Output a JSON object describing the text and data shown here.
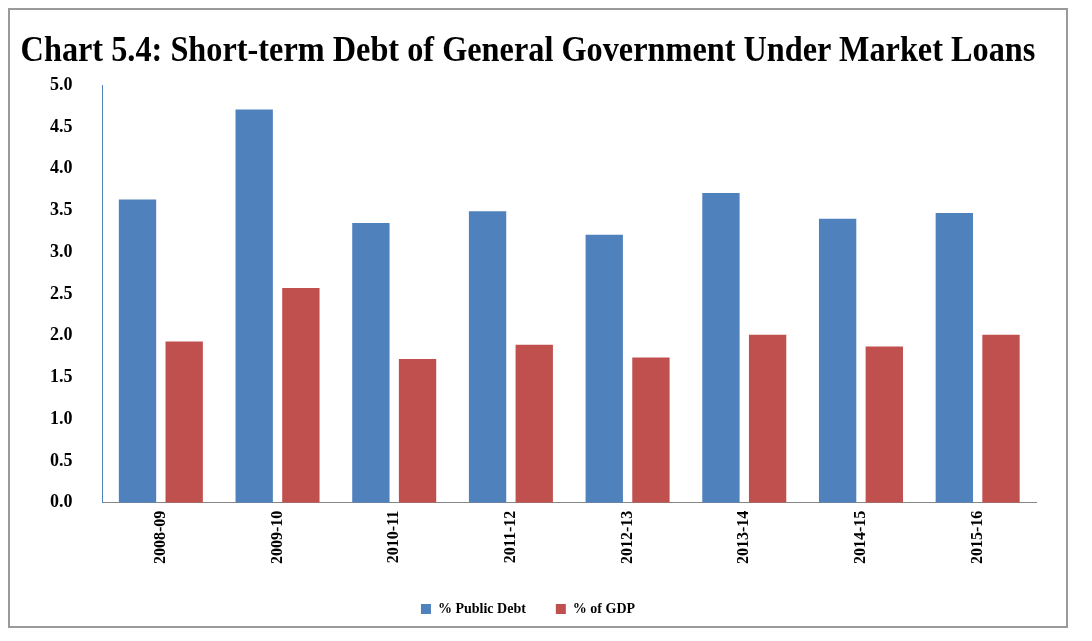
{
  "chart_data": {
    "type": "bar",
    "title": "Chart 5.4: Short-term Debt of General Government Under Market Loans",
    "categories": [
      "2008-09",
      "2009-10",
      "2010-11",
      "2011-12",
      "2012-13",
      "2013-14",
      "2014-15",
      "2015-16"
    ],
    "series": [
      {
        "name": "% Public Debt",
        "color": "#4f81bd",
        "values": [
          3.63,
          4.71,
          3.35,
          3.49,
          3.21,
          3.71,
          3.4,
          3.47
        ]
      },
      {
        "name": "% of GDP",
        "color": "#c0504d",
        "values": [
          1.93,
          2.57,
          1.72,
          1.89,
          1.74,
          2.01,
          1.87,
          2.01
        ]
      }
    ],
    "ylim": [
      0,
      5
    ],
    "yticks": [
      {
        "value": 0,
        "label": "0.0"
      },
      {
        "value": 0.5,
        "label": "0.5"
      },
      {
        "value": 1,
        "label": "1.0"
      },
      {
        "value": 1.5,
        "label": "1.5"
      },
      {
        "value": 2,
        "label": "2.0"
      },
      {
        "value": 2.5,
        "label": "2.5"
      },
      {
        "value": 3,
        "label": "3.0"
      },
      {
        "value": 3.5,
        "label": "3.5"
      },
      {
        "value": 4,
        "label": "4.0"
      },
      {
        "value": 4.5,
        "label": "4.5"
      },
      {
        "value": 5,
        "label": "5.0"
      }
    ],
    "grid": false,
    "legend": "bottom"
  }
}
